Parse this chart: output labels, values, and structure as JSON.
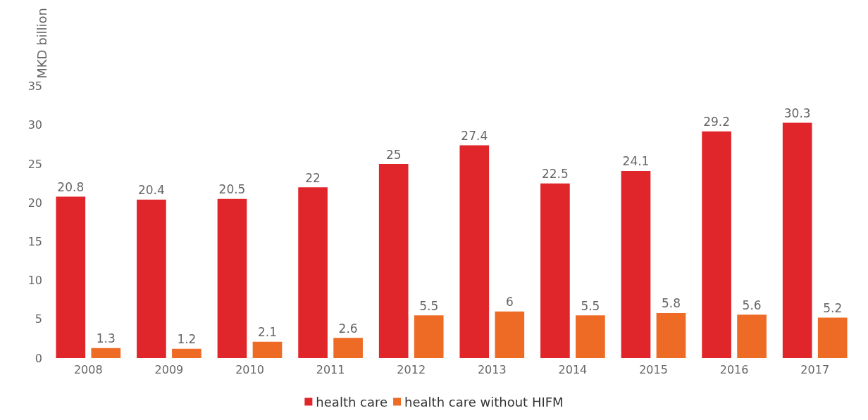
{
  "chart_data": {
    "type": "bar",
    "ylabel": "MKD billion",
    "categories": [
      "2008",
      "2009",
      "2010",
      "2011",
      "2012",
      "2013",
      "2014",
      "2015",
      "2016",
      "2017"
    ],
    "series": [
      {
        "name": "health care",
        "color": "#e0262a",
        "values": [
          20.8,
          20.4,
          20.5,
          22,
          25,
          27.4,
          22.5,
          24.1,
          29.2,
          30.3
        ]
      },
      {
        "name": "health care without HIFM",
        "color": "#ee6b26",
        "values": [
          1.3,
          1.2,
          2.1,
          2.6,
          5.5,
          6,
          5.5,
          5.8,
          5.6,
          5.2
        ]
      }
    ],
    "ylim": [
      0,
      35
    ],
    "yticks": [
      0,
      5,
      10,
      15,
      20,
      25,
      30,
      35
    ],
    "grid": false,
    "legend": "bottom",
    "data_labels": true
  }
}
